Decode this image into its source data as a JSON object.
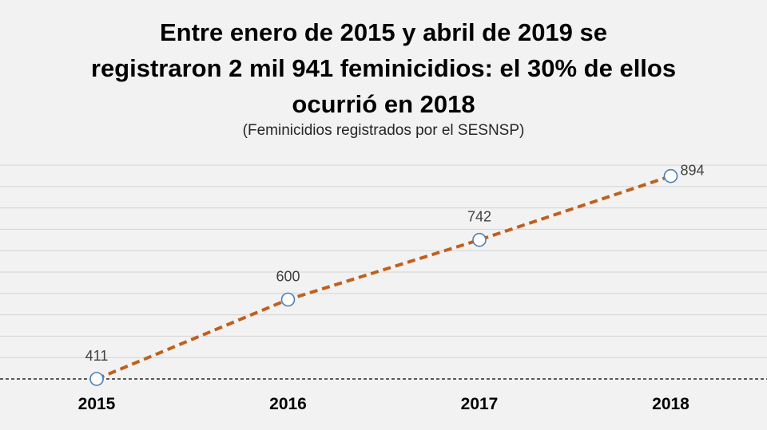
{
  "chart_data": {
    "type": "line",
    "title_lines": [
      "Entre enero de 2015 y abril de 2019 se",
      "registraron 2 mil 941 feminicidios: el 30% de ellos",
      "ocurrió en 2018"
    ],
    "subtitle": "(Feminicidios registrados por el SESNSP)",
    "categories": [
      "2015",
      "2016",
      "2017",
      "2018"
    ],
    "series": [
      {
        "name": "Feminicidios",
        "values": [
          411,
          600,
          742,
          894
        ],
        "color": "#c0601e",
        "marker_color": "#4a7fb8"
      }
    ],
    "ylim": [
      411,
      920
    ],
    "grid": true,
    "xlabel": "",
    "ylabel": ""
  }
}
